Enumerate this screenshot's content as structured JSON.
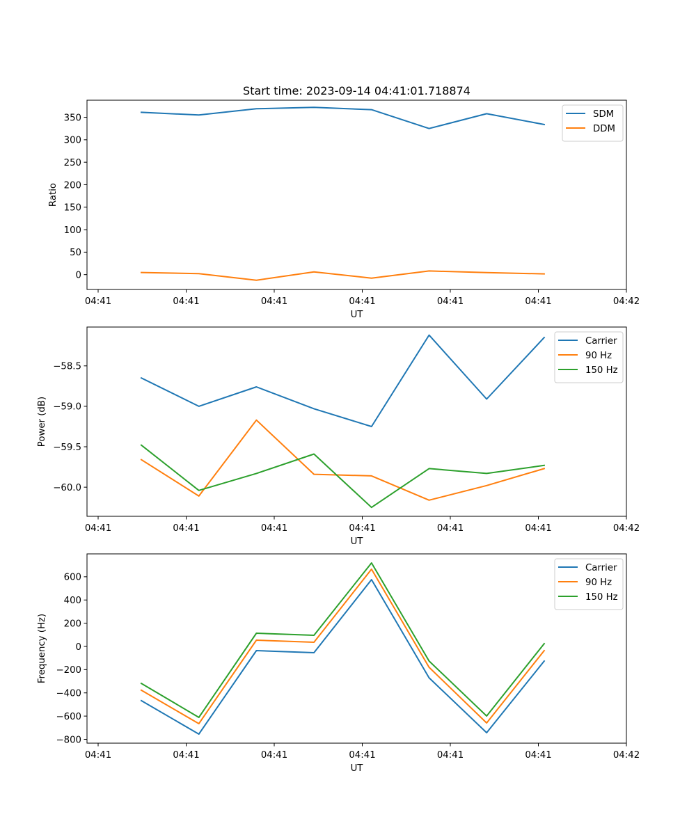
{
  "figure_title": "Start time: 2023-09-14 04:41:01.718874",
  "chart_data": [
    {
      "type": "line",
      "title": "Start time: 2023-09-14 04:41:01.718874",
      "xlabel": "UT",
      "ylabel": "Ratio",
      "x_index": [
        0,
        1,
        2,
        3,
        4,
        5,
        6,
        7
      ],
      "xlim": [
        -0.5,
        8.7
      ],
      "xticks": [
        -0.5,
        1.0,
        2.55,
        4.05,
        5.55,
        7.05,
        8.7
      ],
      "xtick_labels": [
        "04:41",
        "04:41",
        "04:41",
        "04:41",
        "04:41",
        "04:41",
        "04:42"
      ],
      "ylim": [
        -33,
        388
      ],
      "yticks": [
        0,
        50,
        100,
        150,
        200,
        250,
        300,
        350
      ],
      "ytick_labels": [
        "0",
        "50",
        "100",
        "150",
        "200",
        "250",
        "300",
        "350"
      ],
      "legend_position": "top-right",
      "grid": false,
      "series": [
        {
          "name": "SDM",
          "color": "#1f77b4",
          "values": [
            361,
            355,
            369,
            372,
            367,
            325,
            358,
            334
          ]
        },
        {
          "name": "DDM",
          "color": "#ff7f0e",
          "values": [
            4.7,
            2.3,
            -12.4,
            6.2,
            -7.8,
            8.2,
            4.5,
            1.6
          ]
        }
      ]
    },
    {
      "type": "line",
      "title": "",
      "xlabel": "UT",
      "ylabel": "Power (dB)",
      "x_index": [
        0,
        1,
        2,
        3,
        4,
        5,
        6,
        7
      ],
      "xlim": [
        -0.5,
        8.7
      ],
      "xticks": [
        -0.5,
        1.0,
        2.55,
        4.05,
        5.55,
        7.05,
        8.7
      ],
      "xtick_labels": [
        "04:41",
        "04:41",
        "04:41",
        "04:41",
        "04:41",
        "04:41",
        "04:42"
      ],
      "ylim": [
        -60.36,
        -58.02
      ],
      "yticks": [
        -60.0,
        -59.5,
        -59.0,
        -58.5
      ],
      "ytick_labels": [
        "−60.0",
        "−59.5",
        "−59.0",
        "−58.5"
      ],
      "legend_position": "top-right",
      "grid": false,
      "series": [
        {
          "name": "Carrier",
          "color": "#1f77b4",
          "values": [
            -58.65,
            -59.0,
            -58.76,
            -59.03,
            -59.25,
            -58.12,
            -58.91,
            -58.15
          ]
        },
        {
          "name": "90 Hz",
          "color": "#ff7f0e",
          "values": [
            -59.66,
            -60.11,
            -59.17,
            -59.84,
            -59.86,
            -60.16,
            -59.98,
            -59.77
          ]
        },
        {
          "name": "150 Hz",
          "color": "#2ca02c",
          "values": [
            -59.48,
            -60.04,
            -59.83,
            -59.59,
            -60.25,
            -59.77,
            -59.83,
            -59.73
          ]
        }
      ]
    },
    {
      "type": "line",
      "title": "",
      "xlabel": "UT",
      "ylabel": "Frequency (Hz)",
      "x_index": [
        0,
        1,
        2,
        3,
        4,
        5,
        6,
        7
      ],
      "xlim": [
        -0.5,
        8.7
      ],
      "xticks": [
        -0.5,
        1.0,
        2.55,
        4.05,
        5.55,
        7.05,
        8.7
      ],
      "xtick_labels": [
        "04:41",
        "04:41",
        "04:41",
        "04:41",
        "04:41",
        "04:41",
        "04:42"
      ],
      "ylim": [
        -833,
        797
      ],
      "yticks": [
        -800,
        -600,
        -400,
        -200,
        0,
        200,
        400,
        600
      ],
      "ytick_labels": [
        "−800",
        "−600",
        "−400",
        "−200",
        "0",
        "200",
        "400",
        "600"
      ],
      "legend_position": "top-right",
      "grid": false,
      "series": [
        {
          "name": "Carrier",
          "color": "#1f77b4",
          "values": [
            -467,
            -755,
            -36,
            -54,
            575,
            -270,
            -743,
            -126
          ]
        },
        {
          "name": "90 Hz",
          "color": "#ff7f0e",
          "values": [
            -377,
            -665,
            54,
            36,
            665,
            -180,
            -659,
            -36
          ]
        },
        {
          "name": "150 Hz",
          "color": "#2ca02c",
          "values": [
            -318,
            -611,
            114,
            96,
            719,
            -126,
            -599,
            24
          ]
        }
      ]
    }
  ]
}
